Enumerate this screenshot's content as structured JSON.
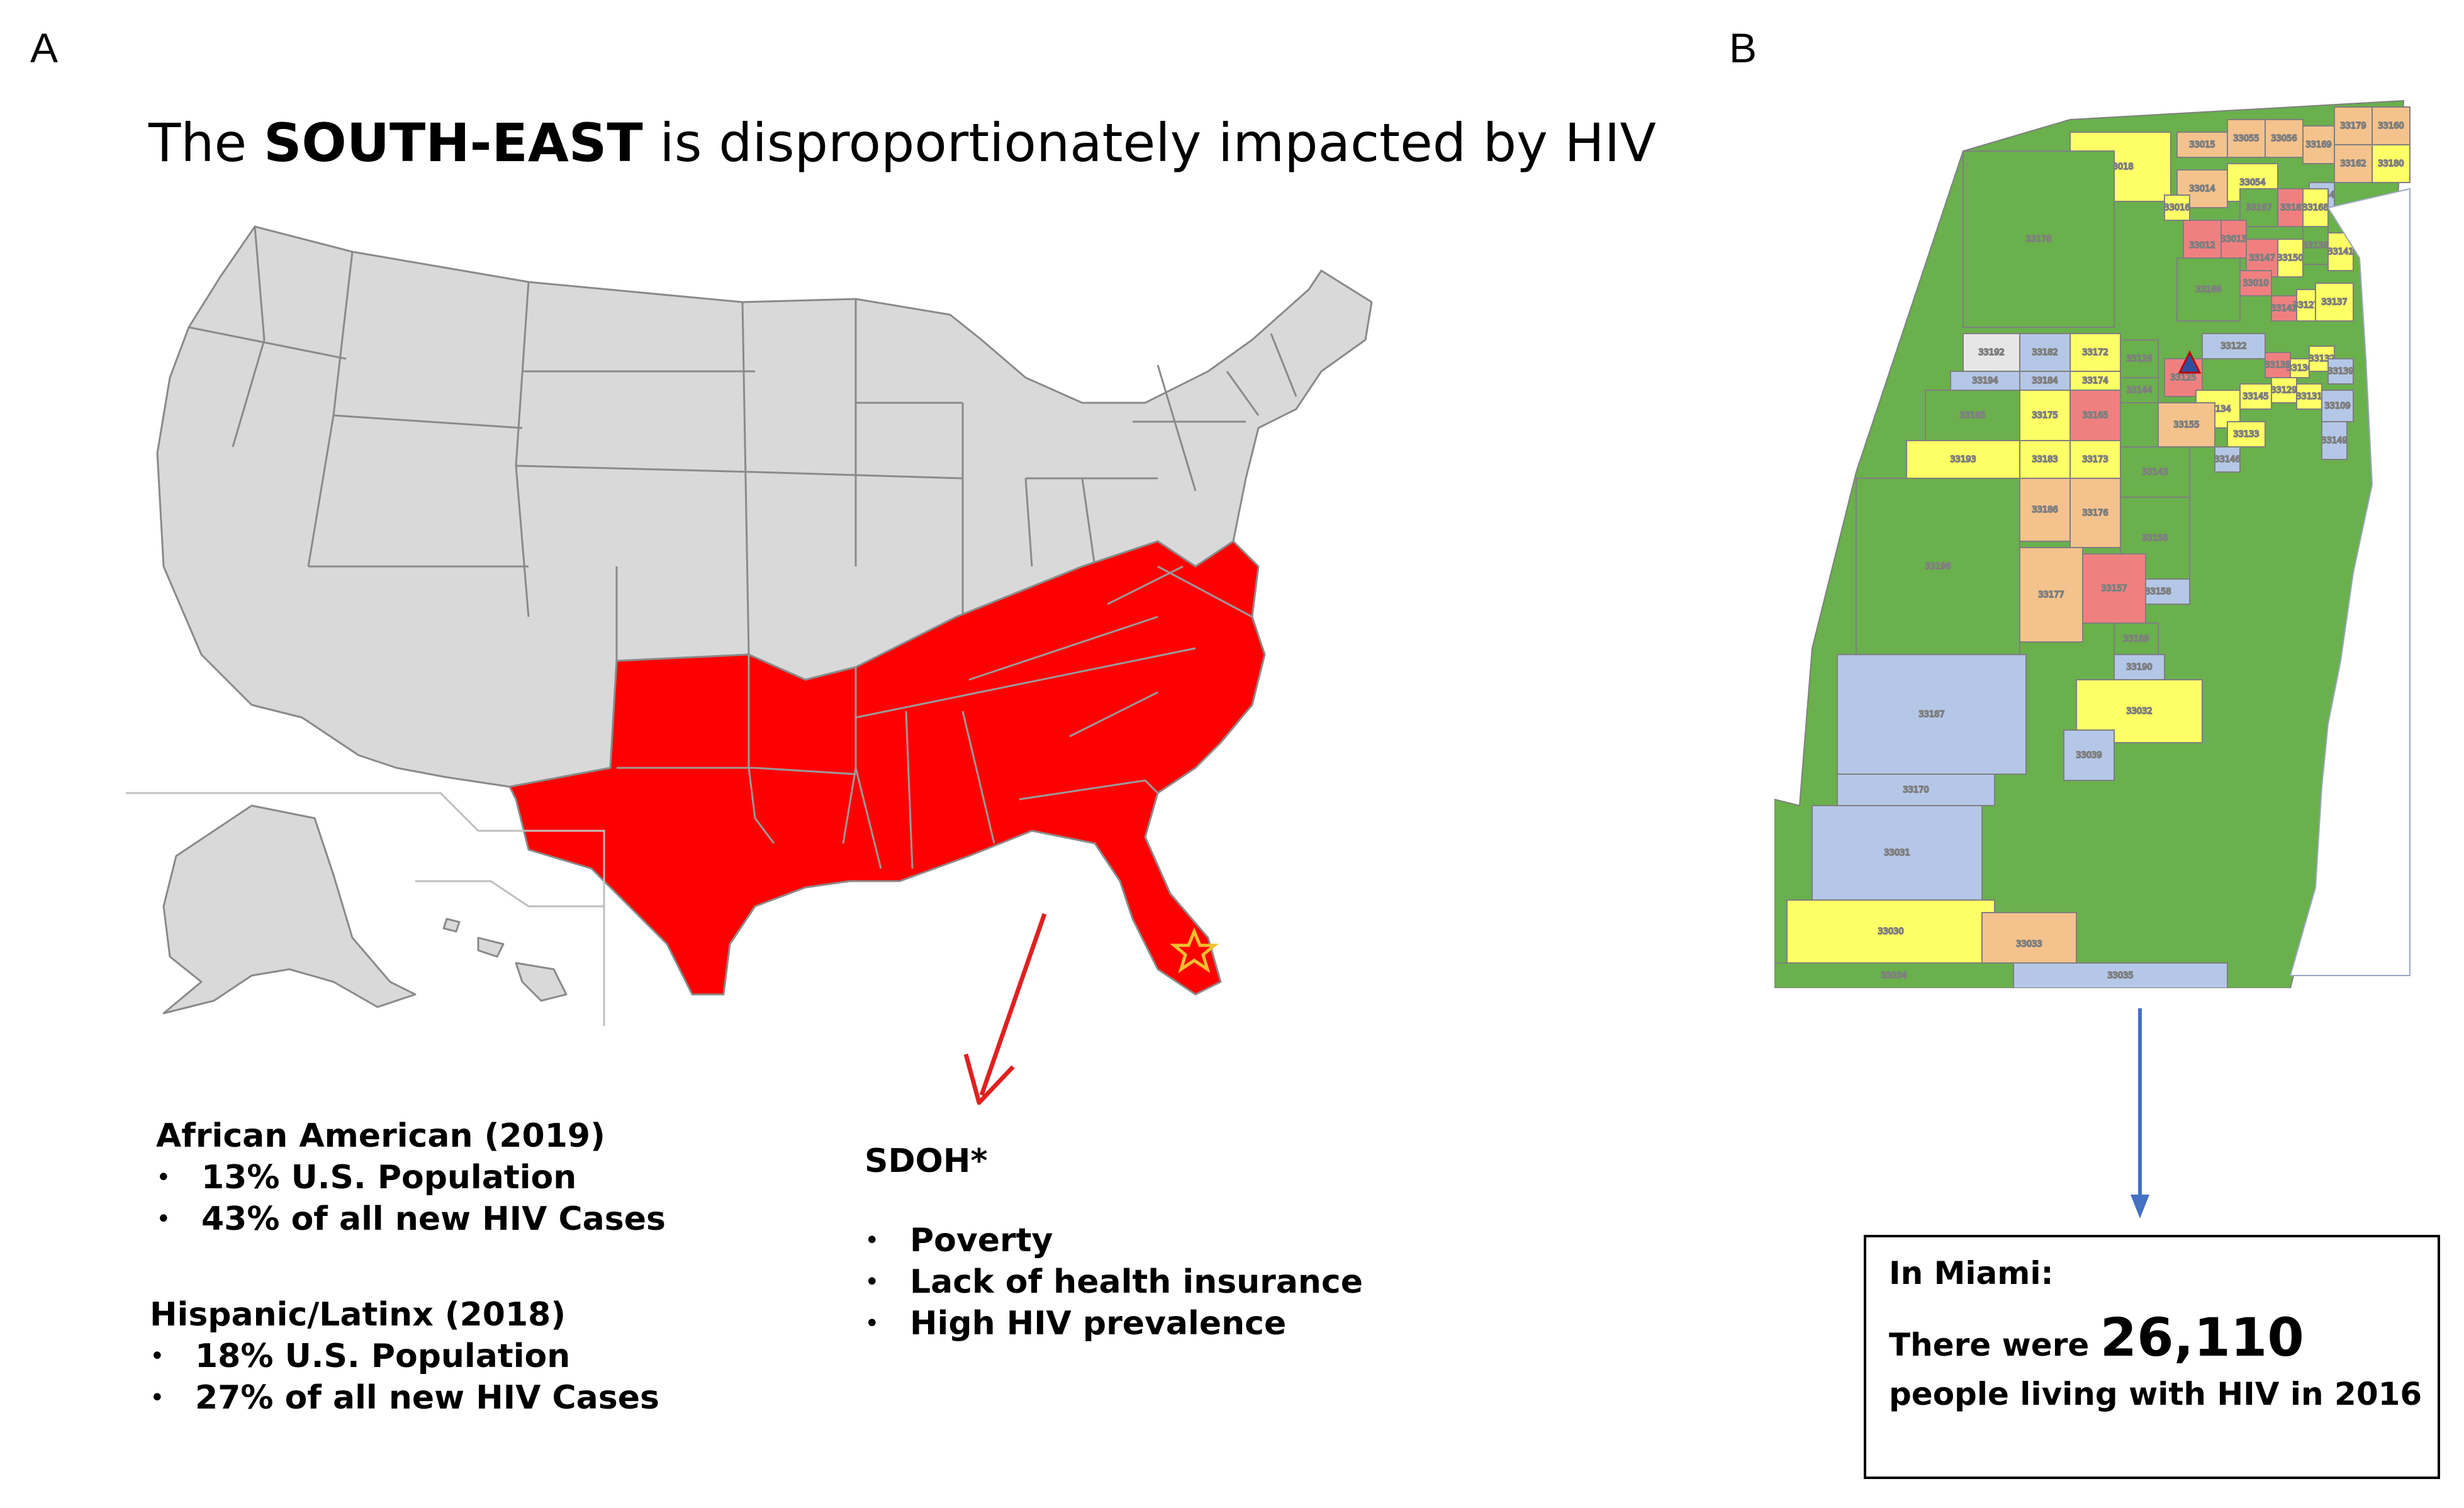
{
  "panel_a": {
    "label": "A",
    "title_prefix": "The ",
    "title_emphasis": "SOUTH-EAST",
    "title_suffix": " is disproportionately impacted by HIV",
    "african_american": {
      "heading": "African American (2019)",
      "items": [
        "13% U.S. Population",
        "43% of all new HIV Cases"
      ]
    },
    "hispanic_latinx": {
      "heading": "Hispanic/Latinx (2018)",
      "items": [
        "18% U.S. Population",
        "27% of all new HIV Cases"
      ]
    },
    "sdoh": {
      "heading": "SDOH*",
      "items": [
        "Poverty",
        "Lack of health insurance",
        "High HIV prevalence"
      ]
    },
    "colors": {
      "highlight": "#ff0000",
      "other_states": "#d9d9d9",
      "arrow": "#e02020"
    }
  },
  "panel_b": {
    "label": "B",
    "callout": {
      "line1": "In Miami:",
      "line2_prefix": "There were ",
      "count": "26,110",
      "line3": "people living with HIV in 2016"
    },
    "zip_codes": [
      "33018",
      "33015",
      "33055",
      "33056",
      "33169",
      "33179",
      "33160",
      "33162",
      "33180",
      "33014",
      "33054",
      "33178",
      "33016",
      "33167",
      "33181",
      "33154",
      "33012",
      "33013",
      "33147",
      "33150",
      "33138",
      "33168",
      "33141",
      "33166",
      "33010",
      "33142",
      "33127",
      "33137",
      "33122",
      "33192",
      "33182",
      "33172",
      "33126",
      "33125",
      "33135",
      "33136",
      "33132",
      "33139",
      "33194",
      "33184",
      "33174",
      "33144",
      "33134",
      "33145",
      "33129",
      "33131",
      "33109",
      "33185",
      "33175",
      "33165",
      "33155",
      "33133",
      "33146",
      "33149",
      "33193",
      "33183",
      "33173",
      "33143",
      "33196",
      "33186",
      "33176",
      "33156",
      "33158",
      "33187",
      "33177",
      "33157",
      "33189",
      "33170",
      "33190",
      "33031",
      "33032",
      "33039",
      "33030",
      "33033",
      "33034",
      "33035"
    ],
    "colors": {
      "green": "#6ab04c",
      "yellow": "#ffff66",
      "tan": "#f4c28c",
      "blue": "#b4c7e7",
      "pink": "#f08080",
      "arrow": "#4472c4"
    }
  }
}
